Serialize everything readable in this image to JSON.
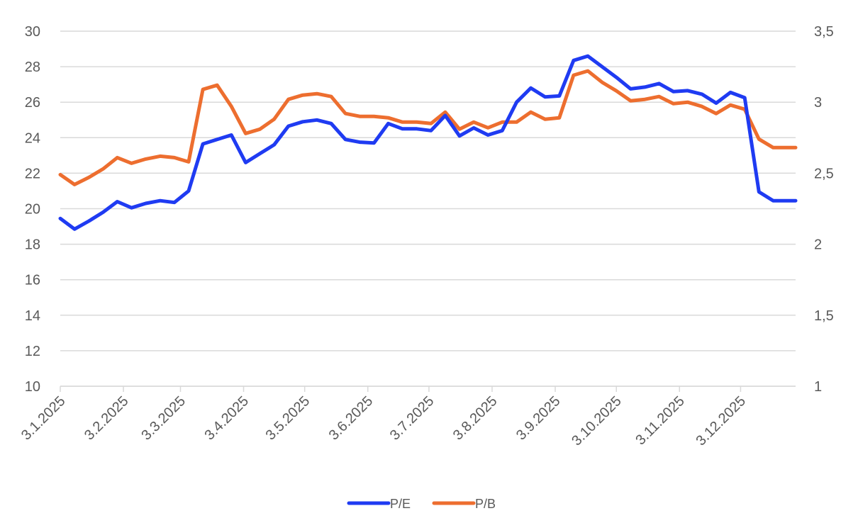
{
  "chart_data": {
    "type": "line",
    "title": "",
    "xlabel": "",
    "ylabel": "",
    "y_left": {
      "min": 10,
      "max": 30,
      "step": 2,
      "ticks": [
        "10",
        "12",
        "14",
        "16",
        "18",
        "20",
        "22",
        "24",
        "26",
        "28",
        "30"
      ]
    },
    "y_right": {
      "min": 1,
      "max": 3.5,
      "step": 0.5,
      "ticks": [
        "1",
        "1,5",
        "2",
        "2,5",
        "3",
        "3,5"
      ]
    },
    "x_tick_labels": [
      "3.1.2025",
      "3.2.2025",
      "3.3.2025",
      "3.4.2025",
      "3.5.2025",
      "3.6.2025",
      "3.7.2025",
      "3.8.2025",
      "3.9.2025",
      "3.10.2025",
      "3.11.2025",
      "3.12.2025"
    ],
    "x_range": [
      "2025-01-03",
      "2025-12-30"
    ],
    "grid": "horizontal",
    "legend_position": "bottom",
    "series": [
      {
        "name": "P/E",
        "axis": "left",
        "color": "#1f3bf2",
        "x": [
          "2025-01-03",
          "2025-01-10",
          "2025-01-17",
          "2025-01-24",
          "2025-01-31",
          "2025-02-07",
          "2025-02-14",
          "2025-02-21",
          "2025-02-28",
          "2025-03-07",
          "2025-03-14",
          "2025-03-21",
          "2025-03-28",
          "2025-04-04",
          "2025-04-11",
          "2025-04-18",
          "2025-04-25",
          "2025-05-02",
          "2025-05-09",
          "2025-05-16",
          "2025-05-23",
          "2025-05-30",
          "2025-06-06",
          "2025-06-13",
          "2025-06-20",
          "2025-06-27",
          "2025-07-04",
          "2025-07-11",
          "2025-07-18",
          "2025-07-25",
          "2025-08-01",
          "2025-08-08",
          "2025-08-15",
          "2025-08-22",
          "2025-08-29",
          "2025-09-05",
          "2025-09-12",
          "2025-09-19",
          "2025-09-26",
          "2025-10-03",
          "2025-10-10",
          "2025-10-17",
          "2025-10-24",
          "2025-10-31",
          "2025-11-07",
          "2025-11-14",
          "2025-11-21",
          "2025-11-28",
          "2025-12-05",
          "2025-12-12",
          "2025-12-19",
          "2025-12-26",
          "2025-12-30"
        ],
        "values": [
          19.45,
          18.85,
          19.3,
          19.8,
          20.4,
          20.05,
          20.3,
          20.45,
          20.35,
          21.0,
          23.65,
          23.9,
          24.15,
          22.6,
          23.1,
          23.6,
          24.65,
          24.9,
          25.0,
          24.8,
          23.9,
          23.75,
          23.7,
          24.8,
          24.5,
          24.5,
          24.4,
          25.25,
          24.1,
          24.55,
          24.15,
          24.4,
          26.0,
          26.8,
          26.3,
          26.35,
          28.35,
          28.6,
          28.0,
          27.4,
          26.75,
          26.85,
          27.05,
          26.6,
          26.65,
          26.45,
          25.95,
          26.55,
          26.25,
          20.95,
          20.45,
          20.45,
          20.45
        ]
      },
      {
        "name": "P/B",
        "axis": "right",
        "color": "#ed6e2f",
        "x": [
          "2025-01-03",
          "2025-01-10",
          "2025-01-17",
          "2025-01-24",
          "2025-01-31",
          "2025-02-07",
          "2025-02-14",
          "2025-02-21",
          "2025-02-28",
          "2025-03-07",
          "2025-03-14",
          "2025-03-21",
          "2025-03-28",
          "2025-04-04",
          "2025-04-11",
          "2025-04-18",
          "2025-04-25",
          "2025-05-02",
          "2025-05-09",
          "2025-05-16",
          "2025-05-23",
          "2025-05-30",
          "2025-06-06",
          "2025-06-13",
          "2025-06-20",
          "2025-06-27",
          "2025-07-04",
          "2025-07-11",
          "2025-07-18",
          "2025-07-25",
          "2025-08-01",
          "2025-08-08",
          "2025-08-15",
          "2025-08-22",
          "2025-08-29",
          "2025-09-05",
          "2025-09-12",
          "2025-09-19",
          "2025-09-26",
          "2025-10-03",
          "2025-10-10",
          "2025-10-17",
          "2025-10-24",
          "2025-10-31",
          "2025-11-07",
          "2025-11-14",
          "2025-11-21",
          "2025-11-28",
          "2025-12-05",
          "2025-12-12",
          "2025-12-19",
          "2025-12-26",
          "2025-12-30"
        ],
        "values": [
          2.49,
          2.42,
          2.47,
          2.53,
          2.61,
          2.57,
          2.6,
          2.62,
          2.61,
          2.58,
          3.09,
          3.12,
          2.97,
          2.78,
          2.81,
          2.88,
          3.02,
          3.05,
          3.06,
          3.04,
          2.92,
          2.9,
          2.9,
          2.89,
          2.86,
          2.86,
          2.85,
          2.93,
          2.81,
          2.86,
          2.82,
          2.86,
          2.86,
          2.93,
          2.88,
          2.89,
          3.19,
          3.22,
          3.14,
          3.08,
          3.01,
          3.02,
          3.04,
          2.99,
          3.0,
          2.97,
          2.92,
          2.98,
          2.95,
          2.74,
          2.68,
          2.68,
          2.68
        ]
      }
    ]
  }
}
